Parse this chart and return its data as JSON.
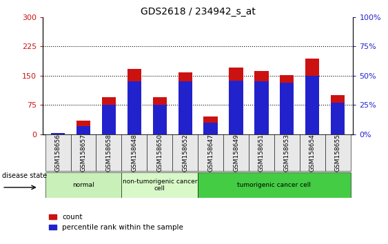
{
  "title": "GDS2618 / 234942_s_at",
  "samples": [
    "GSM158656",
    "GSM158657",
    "GSM158658",
    "GSM158648",
    "GSM158650",
    "GSM158652",
    "GSM158647",
    "GSM158649",
    "GSM158651",
    "GSM158653",
    "GSM158654",
    "GSM158655"
  ],
  "count_values": [
    2,
    35,
    95,
    168,
    95,
    158,
    45,
    170,
    162,
    152,
    193,
    100
  ],
  "percentile_values_pct": [
    1,
    7,
    25,
    45,
    25,
    45,
    10,
    46,
    45,
    44,
    50,
    27
  ],
  "ylim_left": [
    0,
    300
  ],
  "ylim_right": [
    0,
    100
  ],
  "yticks_left": [
    0,
    75,
    150,
    225,
    300
  ],
  "yticks_right": [
    0,
    25,
    50,
    75,
    100
  ],
  "bar_color_red": "#cc1111",
  "bar_color_blue": "#2222cc",
  "bar_width": 0.55,
  "groups": [
    {
      "label": "normal",
      "start": 0,
      "end": 3,
      "color": "#c8f0b8"
    },
    {
      "label": "non-tumorigenic cancer\ncell",
      "start": 3,
      "end": 6,
      "color": "#d8f8c8"
    },
    {
      "label": "tumorigenic cancer cell",
      "start": 6,
      "end": 12,
      "color": "#44cc44"
    }
  ],
  "disease_state_label": "disease state",
  "legend_count": "count",
  "legend_percentile": "percentile rank within the sample",
  "background_color": "#ffffff",
  "title_fontsize": 10,
  "tick_label_fontsize": 6.5,
  "grid_yticks": [
    75,
    150,
    225
  ]
}
